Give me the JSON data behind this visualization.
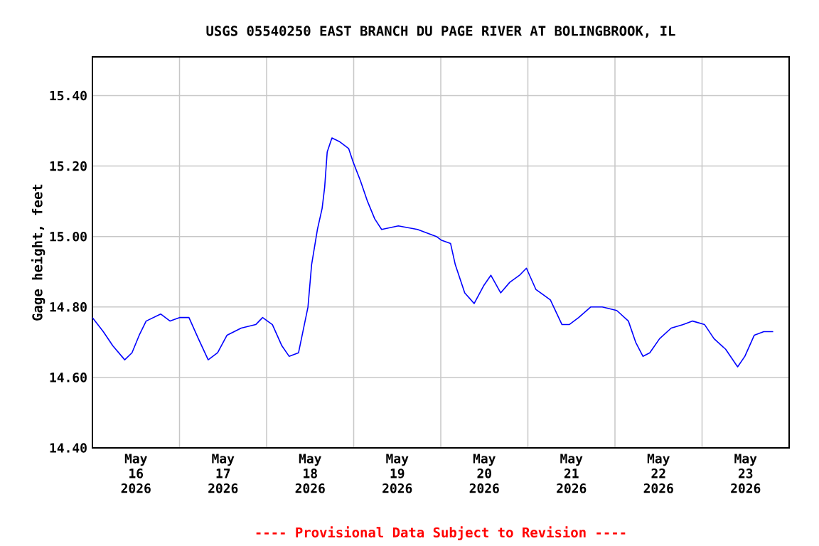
{
  "chart_data": {
    "type": "line",
    "title": "USGS 05540250 EAST BRANCH DU PAGE RIVER AT BOLINGBROOK, IL",
    "ylabel": "Gage height, feet",
    "annotations": [
      "---- Provisional Data Subject to Revision ----"
    ],
    "x": [
      "2026-05-16T00:00",
      "2026-05-16T03:00",
      "2026-05-16T05:36",
      "2026-05-16T08:54",
      "2026-05-16T10:54",
      "2026-05-16T12:54",
      "2026-05-16T14:48",
      "2026-05-16T18:48",
      "2026-05-16T21:24",
      "2026-05-17T00:00",
      "2026-05-17T02:36",
      "2026-05-17T05:12",
      "2026-05-17T07:54",
      "2026-05-17T10:30",
      "2026-05-17T13:06",
      "2026-05-17T17:00",
      "2026-05-17T21:00",
      "2026-05-17T22:54",
      "2026-05-18T01:36",
      "2026-05-18T04:12",
      "2026-05-18T06:12",
      "2026-05-18T08:48",
      "2026-05-18T10:24",
      "2026-05-18T11:24",
      "2026-05-18T12:24",
      "2026-05-18T14:00",
      "2026-05-18T15:18",
      "2026-05-18T16:00",
      "2026-05-18T16:42",
      "2026-05-18T18:00",
      "2026-05-18T20:00",
      "2026-05-18T22:36",
      "2026-05-18T23:54",
      "2026-05-19T01:48",
      "2026-05-19T03:48",
      "2026-05-19T05:48",
      "2026-05-19T07:42",
      "2026-05-19T12:18",
      "2026-05-19T17:36",
      "2026-05-19T20:12",
      "2026-05-19T22:48",
      "2026-05-20T00:06",
      "2026-05-20T02:42",
      "2026-05-20T04:00",
      "2026-05-20T06:36",
      "2026-05-20T09:12",
      "2026-05-20T11:48",
      "2026-05-20T13:48",
      "2026-05-20T16:30",
      "2026-05-20T19:00",
      "2026-05-20T21:42",
      "2026-05-20T23:36",
      "2026-05-21T02:12",
      "2026-05-21T06:12",
      "2026-05-21T09:24",
      "2026-05-21T11:24",
      "2026-05-21T14:00",
      "2026-05-21T17:18",
      "2026-05-21T20:30",
      "2026-05-22T00:30",
      "2026-05-22T03:42",
      "2026-05-22T05:42",
      "2026-05-22T07:42",
      "2026-05-22T09:36",
      "2026-05-22T12:18",
      "2026-05-22T15:30",
      "2026-05-22T18:48",
      "2026-05-22T21:24",
      "2026-05-23T00:42",
      "2026-05-23T03:18",
      "2026-05-23T06:30",
      "2026-05-23T09:48",
      "2026-05-23T11:48",
      "2026-05-23T14:24",
      "2026-05-23T17:00",
      "2026-05-23T19:36"
    ],
    "series": [
      {
        "color": "#0000ff",
        "values": [
          14.77,
          14.73,
          14.69,
          14.65,
          14.67,
          14.72,
          14.76,
          14.78,
          14.76,
          14.77,
          14.77,
          14.71,
          14.65,
          14.67,
          14.72,
          14.74,
          14.75,
          14.77,
          14.75,
          14.69,
          14.66,
          14.67,
          14.75,
          14.8,
          14.92,
          15.02,
          15.08,
          15.14,
          15.24,
          15.28,
          15.27,
          15.25,
          15.21,
          15.16,
          15.1,
          15.05,
          15.02,
          15.03,
          15.02,
          15.01,
          15.0,
          14.99,
          14.98,
          14.92,
          14.84,
          14.81,
          14.86,
          14.89,
          14.84,
          14.87,
          14.89,
          14.91,
          14.85,
          14.82,
          14.75,
          14.75,
          14.77,
          14.8,
          14.8,
          14.79,
          14.76,
          14.7,
          14.66,
          14.67,
          14.71,
          14.74,
          14.75,
          14.76,
          14.75,
          14.71,
          14.68,
          14.63,
          14.66,
          14.72,
          14.73,
          14.73
        ]
      }
    ],
    "xlim": [
      "2026-05-16T00:00",
      "2026-05-24T00:00"
    ],
    "xticks": [
      {
        "value": "2026-05-16T12:00",
        "label": "May 16 2026"
      },
      {
        "value": "2026-05-17T00:00",
        "label": null
      },
      {
        "value": "2026-05-17T12:00",
        "label": "May 17 2026"
      },
      {
        "value": "2026-05-18T00:00",
        "label": null
      },
      {
        "value": "2026-05-18T12:00",
        "label": "May 18 2026"
      },
      {
        "value": "2026-05-19T00:00",
        "label": null
      },
      {
        "value": "2026-05-19T12:00",
        "label": "May 19 2026"
      },
      {
        "value": "2026-05-20T00:00",
        "label": null
      },
      {
        "value": "2026-05-20T12:00",
        "label": "May 20 2026"
      },
      {
        "value": "2026-05-21T00:00",
        "label": null
      },
      {
        "value": "2026-05-21T12:00",
        "label": "May 21 2026"
      },
      {
        "value": "2026-05-22T00:00",
        "label": null
      },
      {
        "value": "2026-05-22T12:00",
        "label": "May 22 2026"
      },
      {
        "value": "2026-05-23T00:00",
        "label": null
      },
      {
        "value": "2026-05-23T12:00",
        "label": "May 23 2026"
      }
    ],
    "ylim": [
      14.4,
      15.51
    ],
    "yticks": [
      {
        "value": 14.4,
        "label": "14.40"
      },
      {
        "value": 14.6,
        "label": "14.60"
      },
      {
        "value": 14.8,
        "label": "14.80"
      },
      {
        "value": 15.0,
        "label": "15.00"
      },
      {
        "value": 15.2,
        "label": "15.20"
      },
      {
        "value": 15.4,
        "label": "15.40"
      }
    ],
    "grid": true
  }
}
